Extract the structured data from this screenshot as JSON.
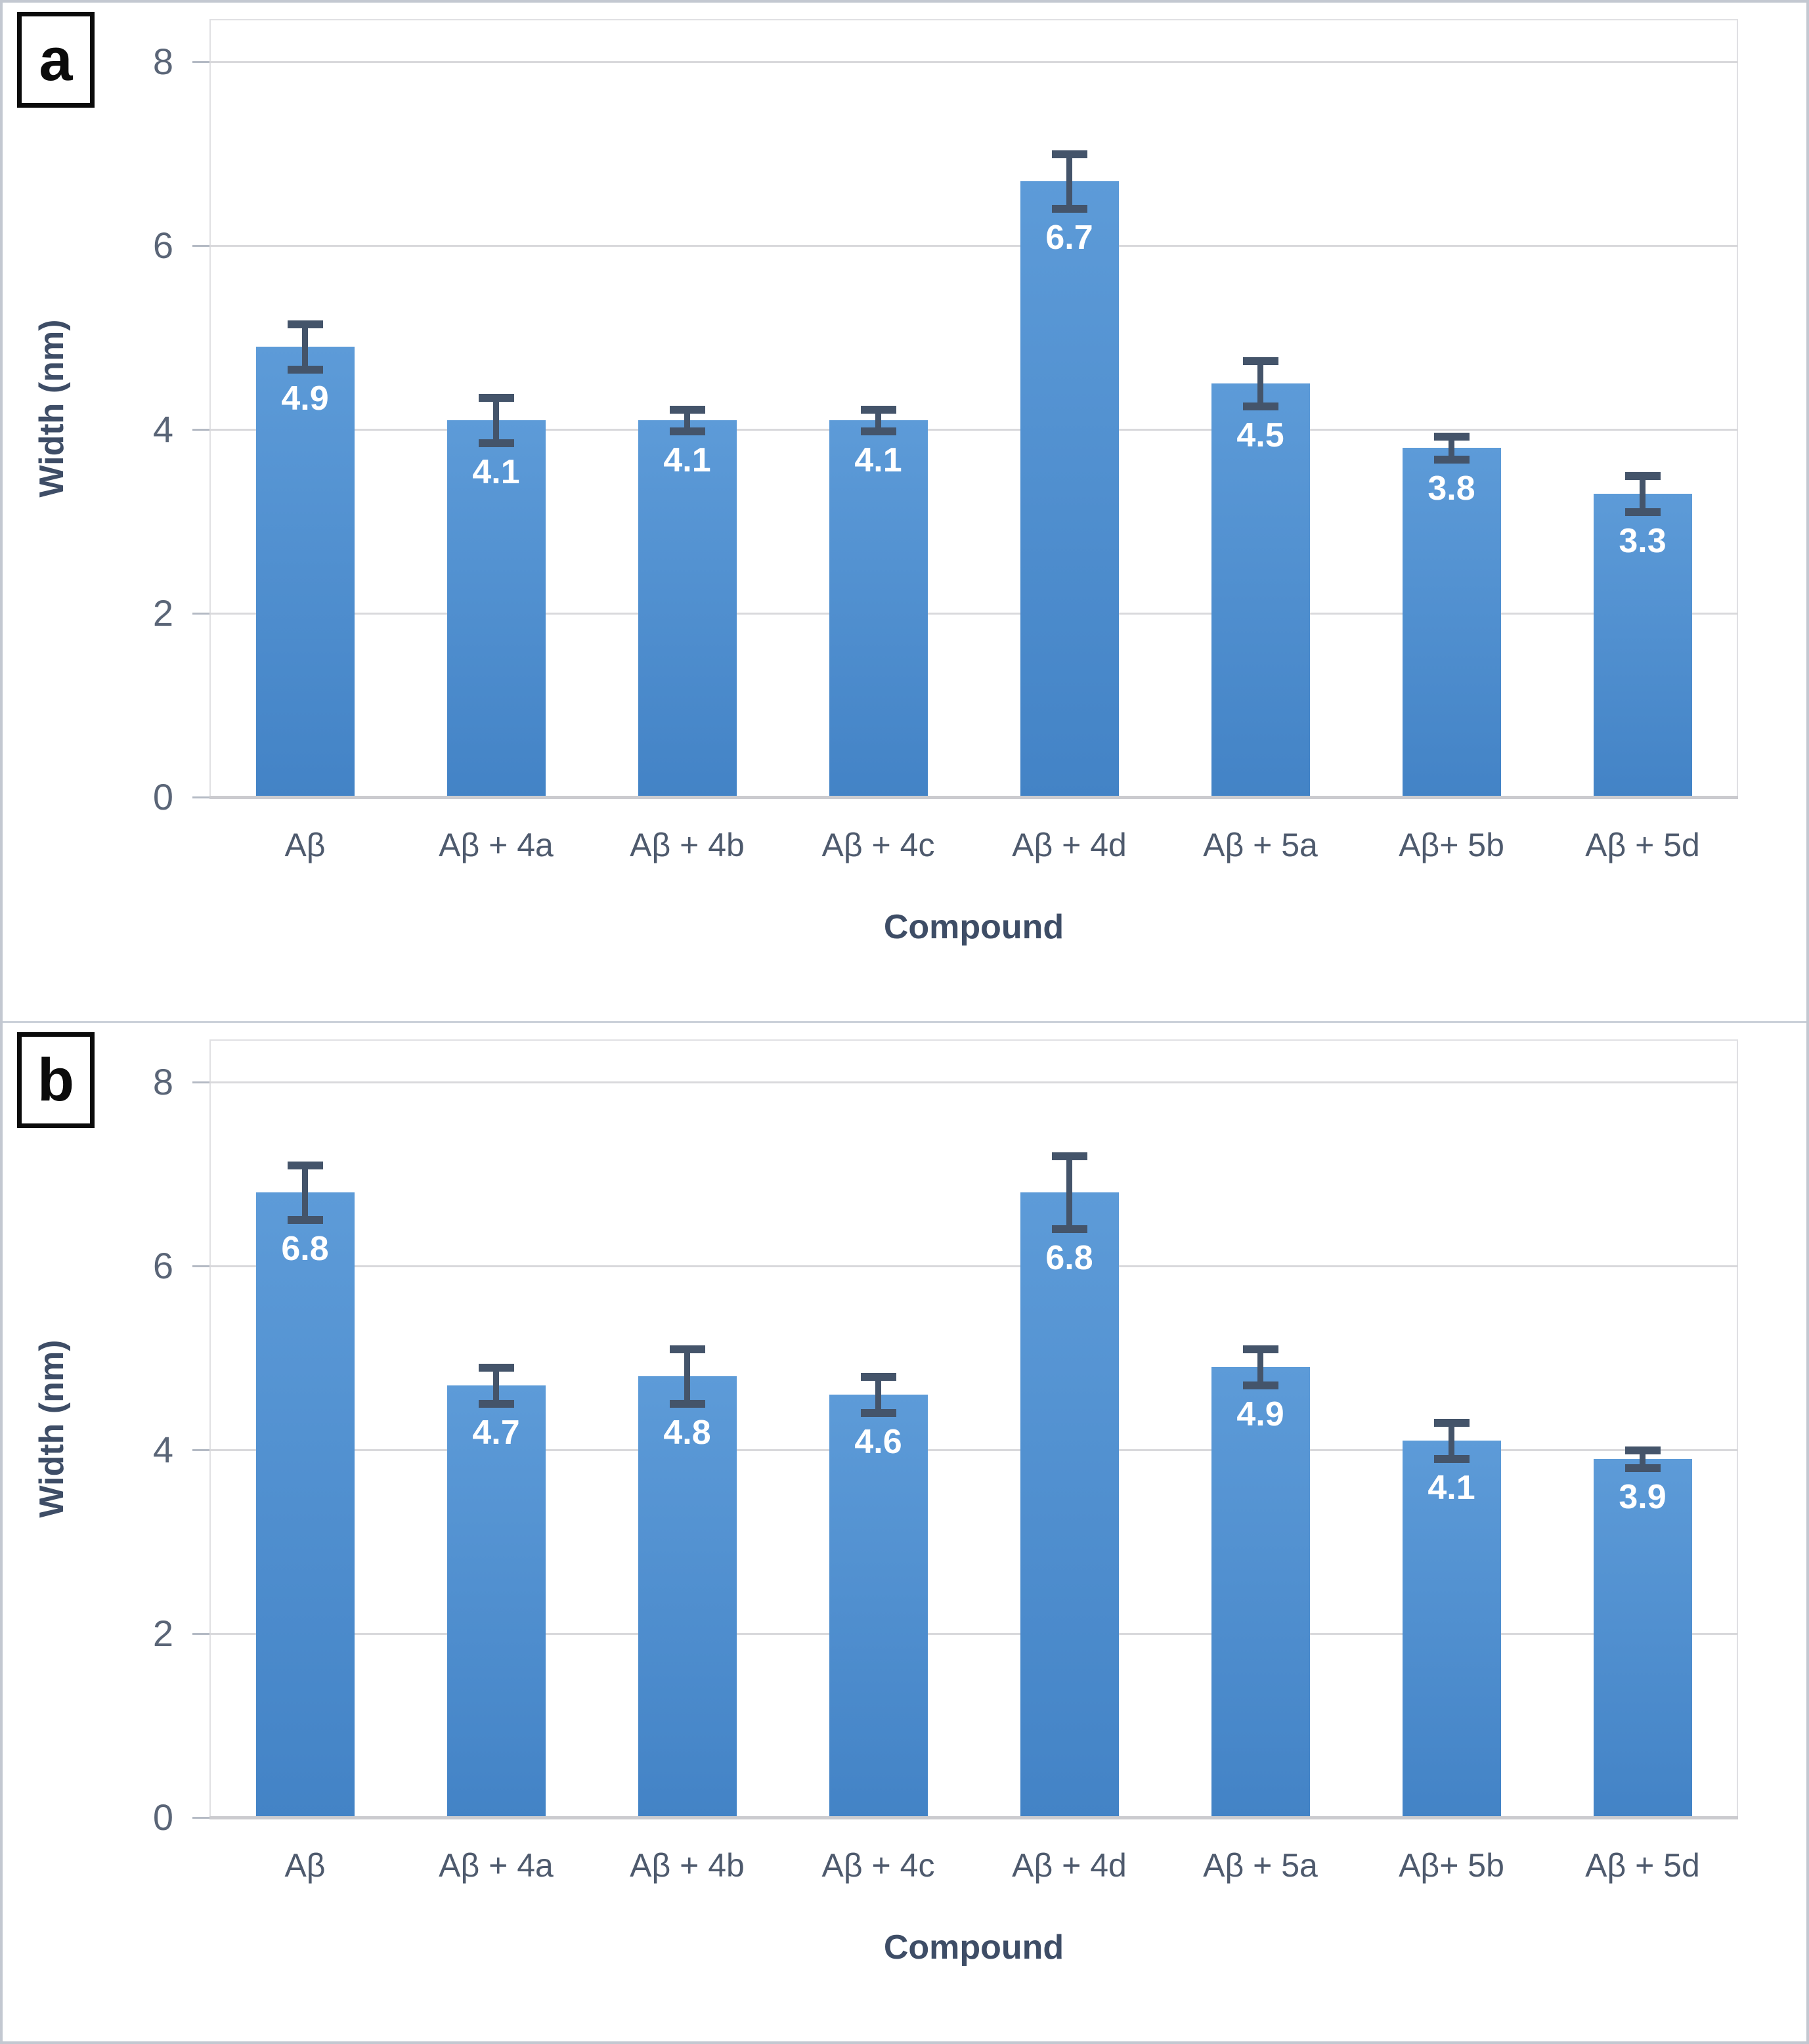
{
  "figure": {
    "background": "#ffffff",
    "border_color": "#c3c8d1",
    "panel_labels": [
      "a",
      "b"
    ]
  },
  "chart_data": [
    {
      "type": "bar",
      "panel_label": "a",
      "xlabel": "Compound",
      "ylabel": "Width (nm)",
      "categories": [
        "Aβ",
        "Aβ + 4a",
        "Aβ + 4b",
        "Aβ + 4c",
        "Aβ + 4d",
        "Aβ + 5a",
        "Aβ+ 5b",
        "Aβ + 5d"
      ],
      "values": [
        4.9,
        4.1,
        4.1,
        4.1,
        6.7,
        4.5,
        3.8,
        3.3
      ],
      "value_labels": [
        "4.9",
        "4.1",
        "4.1",
        "4.1",
        "6.7",
        "4.5",
        "3.8",
        "3.3"
      ],
      "errors": [
        0.25,
        0.25,
        0.12,
        0.12,
        0.3,
        0.25,
        0.13,
        0.2
      ],
      "yticks": [
        0,
        2,
        4,
        6,
        8
      ],
      "ylim": [
        0,
        8.5
      ],
      "grid": true,
      "legend": false,
      "bar_color_top": "#5d9bd8",
      "bar_color_bottom": "#4383c6",
      "error_color": "#44546a",
      "data_label_color": "#ffffff"
    },
    {
      "type": "bar",
      "panel_label": "b",
      "xlabel": "Compound",
      "ylabel": "Width (nm)",
      "categories": [
        "Aβ",
        "Aβ + 4a",
        "Aβ + 4b",
        "Aβ + 4c",
        "Aβ + 4d",
        "Aβ + 5a",
        "Aβ+ 5b",
        "Aβ + 5d"
      ],
      "values": [
        6.8,
        4.7,
        4.8,
        4.6,
        6.8,
        4.9,
        4.1,
        3.9
      ],
      "value_labels": [
        "6.8",
        "4.7",
        "4.8",
        "4.6",
        "6.8",
        "4.9",
        "4.1",
        "3.9"
      ],
      "errors": [
        0.3,
        0.2,
        0.3,
        0.2,
        0.4,
        0.2,
        0.2,
        0.1
      ],
      "yticks": [
        0,
        2,
        4,
        6,
        8
      ],
      "ylim": [
        0,
        8.5
      ],
      "grid": true,
      "legend": false,
      "bar_color_top": "#5d9bd8",
      "bar_color_bottom": "#4383c6",
      "error_color": "#44546a",
      "data_label_color": "#ffffff"
    }
  ]
}
